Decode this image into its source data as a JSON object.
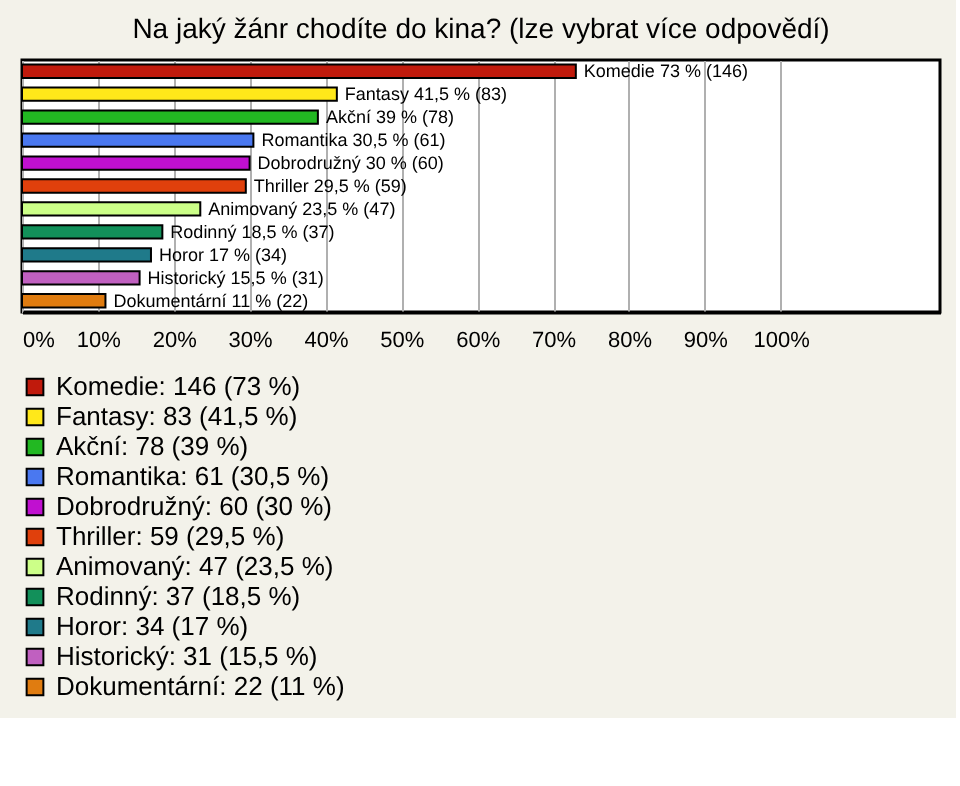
{
  "chart_data": {
    "type": "bar",
    "orientation": "horizontal",
    "title": "Na jaký žánr chodíte do kina? (lze vybrat více odpovědí)",
    "categories": [
      null,
      null,
      null,
      null,
      null,
      null,
      null,
      null,
      null,
      null,
      null
    ],
    "series": [
      {
        "name": "Komedie: 146 (73 %)",
        "color": "#c01a0c",
        "values": [
          73,
          null,
          null,
          null,
          null,
          null,
          null,
          null,
          null,
          null,
          null
        ],
        "value_labels": [
          "Komedie 73 % (146)",
          null,
          null,
          null,
          null,
          null,
          null,
          null,
          null,
          null,
          null
        ]
      },
      {
        "name": "Fantasy: 83 (41,5 %)",
        "color": "#ffe81a",
        "values": [
          null,
          41.5,
          null,
          null,
          null,
          null,
          null,
          null,
          null,
          null,
          null
        ],
        "value_labels": [
          null,
          "Fantasy 41,5 % (83)",
          null,
          null,
          null,
          null,
          null,
          null,
          null,
          null,
          null
        ]
      },
      {
        "name": "Akční: 78 (39 %)",
        "color": "#22b822",
        "values": [
          null,
          null,
          39,
          null,
          null,
          null,
          null,
          null,
          null,
          null,
          null
        ],
        "value_labels": [
          null,
          null,
          "Akční 39 % (78)",
          null,
          null,
          null,
          null,
          null,
          null,
          null,
          null
        ]
      },
      {
        "name": "Romantika: 61 (30,5 %)",
        "color": "#4a78f0",
        "values": [
          null,
          null,
          null,
          30.5,
          null,
          null,
          null,
          null,
          null,
          null,
          null
        ],
        "value_labels": [
          null,
          null,
          null,
          "Romantika 30,5 % (61)",
          null,
          null,
          null,
          null,
          null,
          null,
          null
        ]
      },
      {
        "name": "Dobrodružný: 60 (30 %)",
        "color": "#c010d0",
        "values": [
          null,
          null,
          null,
          null,
          30,
          null,
          null,
          null,
          null,
          null,
          null
        ],
        "value_labels": [
          null,
          null,
          null,
          null,
          "Dobrodružný 30 % (60)",
          null,
          null,
          null,
          null,
          null,
          null
        ]
      },
      {
        "name": "Thriller: 59 (29,5 %)",
        "color": "#e0400c",
        "values": [
          null,
          null,
          null,
          null,
          null,
          29.5,
          null,
          null,
          null,
          null,
          null
        ],
        "value_labels": [
          null,
          null,
          null,
          null,
          null,
          "Thriller 29,5 % (59)",
          null,
          null,
          null,
          null,
          null
        ]
      },
      {
        "name": "Animovaný: 47 (23,5 %)",
        "color": "#ccff88",
        "values": [
          null,
          null,
          null,
          null,
          null,
          null,
          23.5,
          null,
          null,
          null,
          null
        ],
        "value_labels": [
          null,
          null,
          null,
          null,
          null,
          null,
          "Animovaný 23,5 % (47)",
          null,
          null,
          null,
          null
        ]
      },
      {
        "name": "Rodinný: 37 (18,5 %)",
        "color": "#12905a",
        "values": [
          null,
          null,
          null,
          null,
          null,
          null,
          null,
          18.5,
          null,
          null,
          null
        ],
        "value_labels": [
          null,
          null,
          null,
          null,
          null,
          null,
          null,
          "Rodinný 18,5 % (37)",
          null,
          null,
          null
        ]
      },
      {
        "name": "Horor: 34 (17 %)",
        "color": "#1f7a8a",
        "values": [
          null,
          null,
          null,
          null,
          null,
          null,
          null,
          null,
          17,
          null,
          null
        ],
        "value_labels": [
          null,
          null,
          null,
          null,
          null,
          null,
          null,
          null,
          "Horor 17 % (34)",
          null,
          null
        ]
      },
      {
        "name": "Historický: 31 (15,5 %)",
        "color": "#c060c0",
        "values": [
          null,
          null,
          null,
          null,
          null,
          null,
          null,
          null,
          null,
          15.5,
          null
        ],
        "value_labels": [
          null,
          null,
          null,
          null,
          null,
          null,
          null,
          null,
          null,
          "Historický 15,5 % (31)",
          null
        ]
      },
      {
        "name": "Dokumentární: 22 (11 %)",
        "color": "#e07c10",
        "values": [
          null,
          null,
          null,
          null,
          null,
          null,
          null,
          null,
          null,
          null,
          11
        ],
        "value_labels": [
          null,
          null,
          null,
          null,
          null,
          null,
          null,
          null,
          null,
          null,
          "Dokumentární 11 % (22)"
        ]
      }
    ],
    "xlim": [
      0,
      121
    ],
    "xticks": [
      {
        "value": 0,
        "label": "0%"
      },
      {
        "value": 10,
        "label": "10%"
      },
      {
        "value": 20,
        "label": "20%"
      },
      {
        "value": 30,
        "label": "30%"
      },
      {
        "value": 40,
        "label": "40%"
      },
      {
        "value": 50,
        "label": "50%"
      },
      {
        "value": 60,
        "label": "60%"
      },
      {
        "value": 70,
        "label": "70%"
      },
      {
        "value": 80,
        "label": "80%"
      },
      {
        "value": 90,
        "label": "90%"
      },
      {
        "value": 100,
        "label": "100%"
      }
    ],
    "grid": "x",
    "legend": "bottom",
    "tick_labels": "x"
  }
}
